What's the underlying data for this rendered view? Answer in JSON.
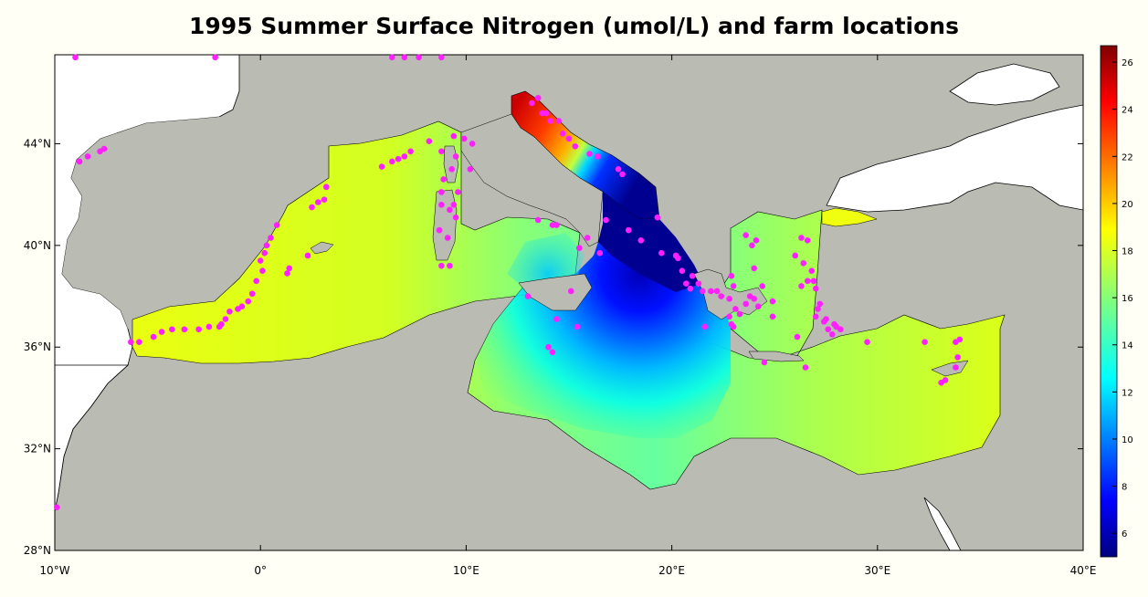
{
  "title": "1995 Summer Surface Nitrogen (umol/L) and farm locations",
  "colors": {
    "background": "#fffff5",
    "land": "#ffffff",
    "ocean_masked": "#babbb2",
    "farm_marker": "#ff1fff",
    "coastline": "#000000"
  },
  "axes": {
    "x_ticks": [
      {
        "value": -10,
        "label": "10°W"
      },
      {
        "value": 0,
        "label": "0°"
      },
      {
        "value": 10,
        "label": "10°E"
      },
      {
        "value": 20,
        "label": "20°E"
      },
      {
        "value": 30,
        "label": "30°E"
      },
      {
        "value": 40,
        "label": "40°E"
      }
    ],
    "y_ticks": [
      {
        "value": 28,
        "label": "28°N"
      },
      {
        "value": 32,
        "label": "32°N"
      },
      {
        "value": 36,
        "label": "36°N"
      },
      {
        "value": 40,
        "label": "40°N"
      },
      {
        "value": 44,
        "label": "44°N"
      }
    ],
    "lon_range": [
      -10,
      40
    ],
    "lat_range": [
      28,
      47.5
    ]
  },
  "colorbar": {
    "min": 5,
    "max": 26.7,
    "ticks": [
      "6",
      "8",
      "10",
      "12",
      "14",
      "16",
      "18",
      "20",
      "22",
      "24",
      "26"
    ],
    "colormap": "jet"
  },
  "farm_locations": [
    [
      -9.0,
      47.4
    ],
    [
      -2.2,
      47.4
    ],
    [
      6.4,
      47.4
    ],
    [
      7.0,
      47.4
    ],
    [
      7.7,
      47.4
    ],
    [
      8.8,
      47.4
    ],
    [
      -8.8,
      43.3
    ],
    [
      -8.4,
      43.5
    ],
    [
      -7.8,
      43.7
    ],
    [
      -7.6,
      43.8
    ],
    [
      -9.9,
      29.7
    ],
    [
      -6.3,
      36.2
    ],
    [
      -5.9,
      36.2
    ],
    [
      -5.2,
      36.4
    ],
    [
      -4.8,
      36.6
    ],
    [
      -4.3,
      36.7
    ],
    [
      -3.7,
      36.7
    ],
    [
      -3.0,
      36.7
    ],
    [
      -2.5,
      36.8
    ],
    [
      -2.0,
      36.8
    ],
    [
      -1.9,
      36.9
    ],
    [
      -1.7,
      37.1
    ],
    [
      -1.5,
      37.4
    ],
    [
      -1.1,
      37.5
    ],
    [
      -0.9,
      37.6
    ],
    [
      -0.6,
      37.8
    ],
    [
      -0.4,
      38.1
    ],
    [
      -0.2,
      38.6
    ],
    [
      0.1,
      39.0
    ],
    [
      0.0,
      39.4
    ],
    [
      0.2,
      39.7
    ],
    [
      0.3,
      40.0
    ],
    [
      0.5,
      40.3
    ],
    [
      0.8,
      40.8
    ],
    [
      1.3,
      38.9
    ],
    [
      1.4,
      39.1
    ],
    [
      2.3,
      39.6
    ],
    [
      2.5,
      41.5
    ],
    [
      2.8,
      41.7
    ],
    [
      3.1,
      41.8
    ],
    [
      3.2,
      42.3
    ],
    [
      5.9,
      43.1
    ],
    [
      6.4,
      43.3
    ],
    [
      6.7,
      43.4
    ],
    [
      7.0,
      43.5
    ],
    [
      7.3,
      43.7
    ],
    [
      8.2,
      44.1
    ],
    [
      8.8,
      43.7
    ],
    [
      9.1,
      40.3
    ],
    [
      8.8,
      39.2
    ],
    [
      9.2,
      39.2
    ],
    [
      8.7,
      40.6
    ],
    [
      8.8,
      41.6
    ],
    [
      8.8,
      42.1
    ],
    [
      8.9,
      42.6
    ],
    [
      9.2,
      41.4
    ],
    [
      9.4,
      41.6
    ],
    [
      9.3,
      43.0
    ],
    [
      9.5,
      43.5
    ],
    [
      9.4,
      44.3
    ],
    [
      9.9,
      44.2
    ],
    [
      10.3,
      44.0
    ],
    [
      10.2,
      43.0
    ],
    [
      9.6,
      42.1
    ],
    [
      9.5,
      41.1
    ],
    [
      13.2,
      45.6
    ],
    [
      13.5,
      45.8
    ],
    [
      13.7,
      45.2
    ],
    [
      13.9,
      45.2
    ],
    [
      14.1,
      44.9
    ],
    [
      14.5,
      44.9
    ],
    [
      14.7,
      44.4
    ],
    [
      15.0,
      44.2
    ],
    [
      15.3,
      43.9
    ],
    [
      16.0,
      43.6
    ],
    [
      16.4,
      43.5
    ],
    [
      17.4,
      43.0
    ],
    [
      17.6,
      42.8
    ],
    [
      13.5,
      41.0
    ],
    [
      14.2,
      40.8
    ],
    [
      14.4,
      40.8
    ],
    [
      15.1,
      38.2
    ],
    [
      14.4,
      37.1
    ],
    [
      15.4,
      36.8
    ],
    [
      13.0,
      38.0
    ],
    [
      14.0,
      36.0
    ],
    [
      14.2,
      35.8
    ],
    [
      15.5,
      39.9
    ],
    [
      16.5,
      39.7
    ],
    [
      15.9,
      40.3
    ],
    [
      16.8,
      41.0
    ],
    [
      17.9,
      40.6
    ],
    [
      18.5,
      40.2
    ],
    [
      19.3,
      41.1
    ],
    [
      19.5,
      39.7
    ],
    [
      20.2,
      39.6
    ],
    [
      20.3,
      39.5
    ],
    [
      20.5,
      39.0
    ],
    [
      20.7,
      38.5
    ],
    [
      20.9,
      38.3
    ],
    [
      21.0,
      38.8
    ],
    [
      21.3,
      38.5
    ],
    [
      21.5,
      38.2
    ],
    [
      21.9,
      38.2
    ],
    [
      22.2,
      38.2
    ],
    [
      22.4,
      38.0
    ],
    [
      22.8,
      37.9
    ],
    [
      23.0,
      38.4
    ],
    [
      22.9,
      38.8
    ],
    [
      23.1,
      37.5
    ],
    [
      23.3,
      37.3
    ],
    [
      23.6,
      37.7
    ],
    [
      23.8,
      38.0
    ],
    [
      24.0,
      37.9
    ],
    [
      24.2,
      37.6
    ],
    [
      22.8,
      37.2
    ],
    [
      22.9,
      36.9
    ],
    [
      23.0,
      36.8
    ],
    [
      21.6,
      36.8
    ],
    [
      23.6,
      40.4
    ],
    [
      23.9,
      40.0
    ],
    [
      24.1,
      40.2
    ],
    [
      24.0,
      39.1
    ],
    [
      24.4,
      38.4
    ],
    [
      24.5,
      35.4
    ],
    [
      24.9,
      37.2
    ],
    [
      24.9,
      37.8
    ],
    [
      26.3,
      40.3
    ],
    [
      26.6,
      40.2
    ],
    [
      26.0,
      39.6
    ],
    [
      26.4,
      39.3
    ],
    [
      26.8,
      39.0
    ],
    [
      26.9,
      38.6
    ],
    [
      26.6,
      38.6
    ],
    [
      26.3,
      38.4
    ],
    [
      27.0,
      38.3
    ],
    [
      27.2,
      37.7
    ],
    [
      27.1,
      37.5
    ],
    [
      27.0,
      37.2
    ],
    [
      27.4,
      37.0
    ],
    [
      27.5,
      37.1
    ],
    [
      27.9,
      36.9
    ],
    [
      27.6,
      36.7
    ],
    [
      27.8,
      36.5
    ],
    [
      28.2,
      36.7
    ],
    [
      28.0,
      36.8
    ],
    [
      26.5,
      35.2
    ],
    [
      26.1,
      36.4
    ],
    [
      29.5,
      36.2
    ],
    [
      32.3,
      36.2
    ],
    [
      33.8,
      36.2
    ],
    [
      34.0,
      36.3
    ],
    [
      33.9,
      35.6
    ],
    [
      33.8,
      35.2
    ],
    [
      33.3,
      34.7
    ],
    [
      33.1,
      34.6
    ]
  ]
}
